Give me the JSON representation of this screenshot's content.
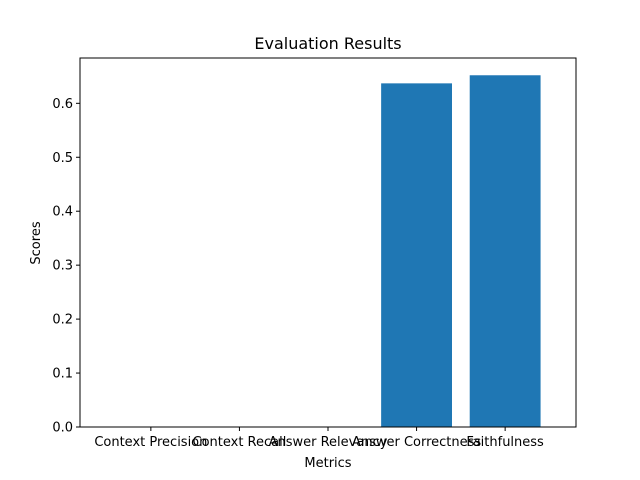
{
  "chart_data": {
    "type": "bar",
    "title": "Evaluation Results",
    "xlabel": "Metrics",
    "ylabel": "Scores",
    "categories": [
      "Context Precision",
      "Context Recall",
      "Answer Relevancy",
      "Answer Correctness",
      "Faithfulness"
    ],
    "values": [
      0,
      0,
      0,
      0.637,
      0.652
    ],
    "ylim": [
      0,
      0.684
    ],
    "yticks": [
      "0.0",
      "0.1",
      "0.2",
      "0.3",
      "0.4",
      "0.5",
      "0.6"
    ],
    "bar_color": "#1f77b4",
    "grid": false,
    "legend": "none"
  }
}
